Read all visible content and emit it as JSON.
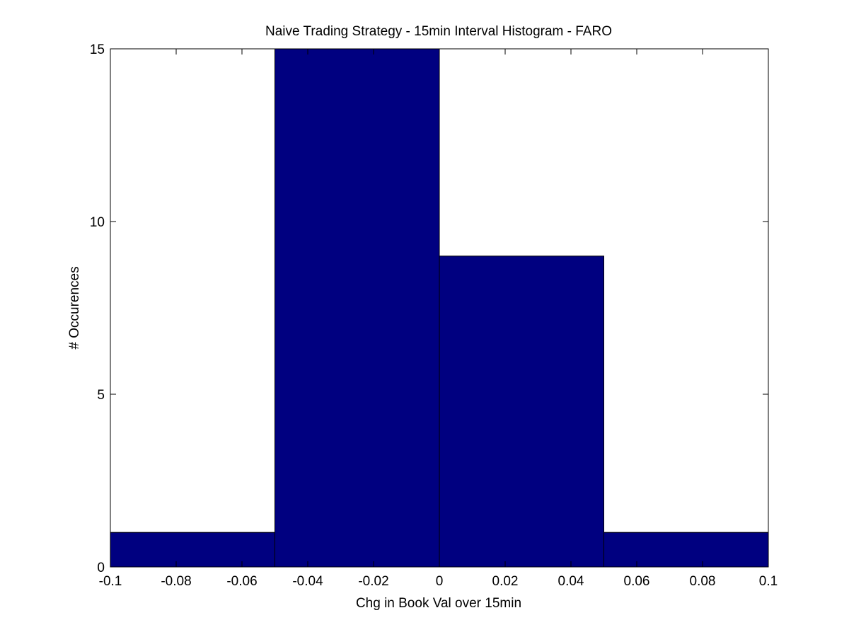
{
  "colors": {
    "bar_fill": "#000080",
    "bar_edge": "#000000",
    "axes": "#000000",
    "background": "#ffffff"
  },
  "chart_data": {
    "type": "bar",
    "title": "Naive Trading Strategy - 15min Interval Histogram - FARO",
    "xlabel": "Chg in Book Val over 15min",
    "ylabel": "# Occurences",
    "xlim": [
      -0.1,
      0.1
    ],
    "ylim": [
      0,
      15
    ],
    "grid": false,
    "bins": [
      {
        "x0": -0.1,
        "x1": -0.05,
        "count": 1
      },
      {
        "x0": -0.05,
        "x1": 0.0,
        "count": 15
      },
      {
        "x0": 0.0,
        "x1": 0.05,
        "count": 9
      },
      {
        "x0": 0.05,
        "x1": 0.1,
        "count": 1
      }
    ],
    "xticks": [
      {
        "value": -0.1,
        "label": "-0.1"
      },
      {
        "value": -0.08,
        "label": "-0.08"
      },
      {
        "value": -0.06,
        "label": "-0.06"
      },
      {
        "value": -0.04,
        "label": "-0.04"
      },
      {
        "value": -0.02,
        "label": "-0.02"
      },
      {
        "value": 0.0,
        "label": "0"
      },
      {
        "value": 0.02,
        "label": "0.02"
      },
      {
        "value": 0.04,
        "label": "0.04"
      },
      {
        "value": 0.06,
        "label": "0.06"
      },
      {
        "value": 0.08,
        "label": "0.08"
      },
      {
        "value": 0.1,
        "label": "0.1"
      }
    ],
    "yticks": [
      {
        "value": 0,
        "label": "0"
      },
      {
        "value": 5,
        "label": "5"
      },
      {
        "value": 10,
        "label": "10"
      },
      {
        "value": 15,
        "label": "15"
      }
    ]
  }
}
